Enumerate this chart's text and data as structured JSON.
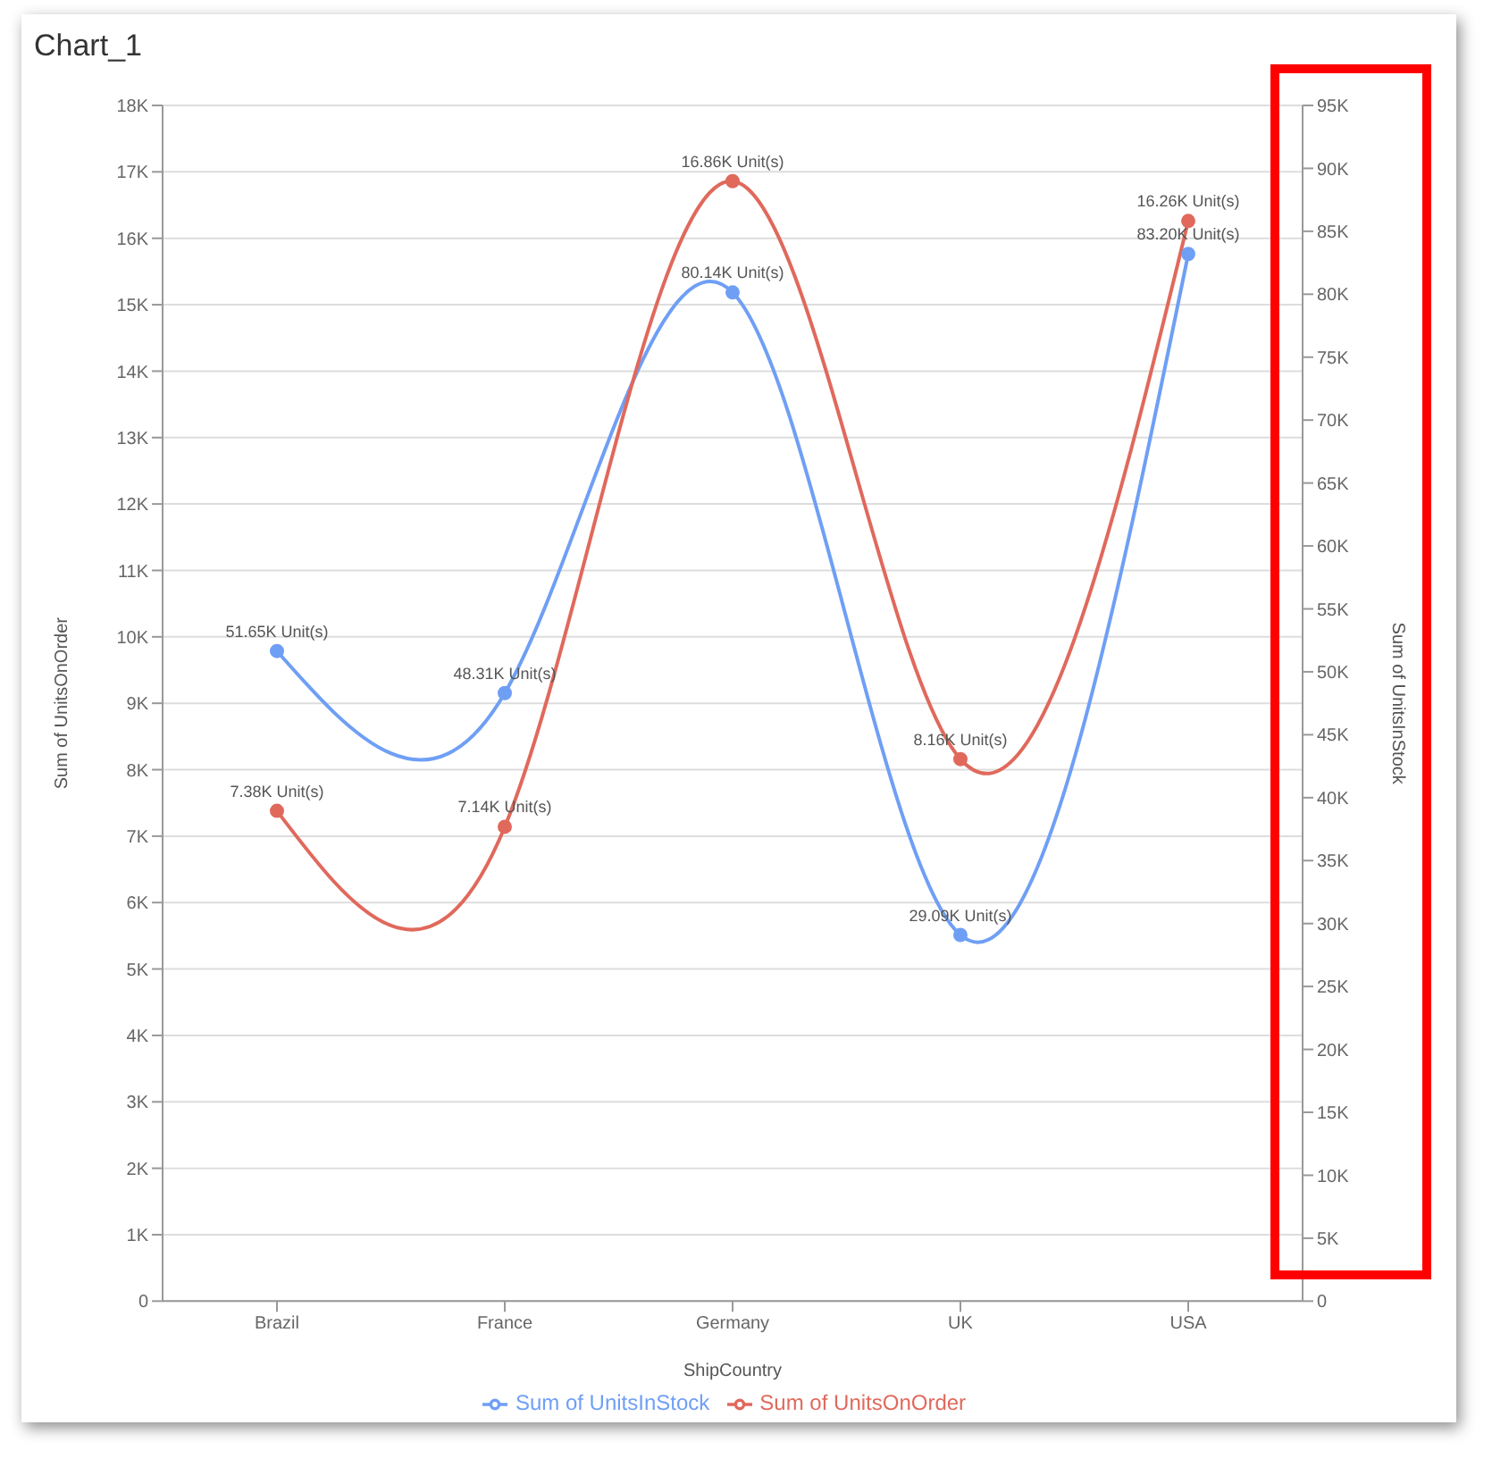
{
  "chart_data": {
    "type": "line",
    "title": "Chart_1",
    "xlabel": "ShipCountry",
    "ylabel": "Sum of UnitsOnOrder",
    "y2label": "Sum of UnitsInStock",
    "categories": [
      "Brazil",
      "France",
      "Germany",
      "UK",
      "USA"
    ],
    "series": [
      {
        "name": "Sum of UnitsInStock",
        "color": "#6f9ff5",
        "axis": "y2",
        "values": [
          51650,
          48310,
          80140,
          29090,
          83200
        ],
        "value_labels": [
          "51.65K Unit(s)",
          "48.31K Unit(s)",
          "80.14K Unit(s)",
          "29.09K Unit(s)",
          "83.20K Unit(s)"
        ]
      },
      {
        "name": "Sum of UnitsOnOrder",
        "color": "#e0695c",
        "values": [
          7380,
          7140,
          16860,
          8160,
          16260
        ],
        "value_labels": [
          "7.38K Unit(s)",
          "7.14K Unit(s)",
          "16.86K Unit(s)",
          "8.16K Unit(s)",
          "16.26K Unit(s)"
        ]
      }
    ],
    "ylim": [
      0,
      18000
    ],
    "yticks": [
      0,
      {
        "value": 1000,
        "label": "1K"
      },
      {
        "value": 2000,
        "label": "2K"
      },
      {
        "value": 3000,
        "label": "3K"
      },
      {
        "value": 4000,
        "label": "4K"
      },
      {
        "value": 5000,
        "label": "5K"
      },
      {
        "value": 6000,
        "label": "6K"
      },
      {
        "value": 7000,
        "label": "7K"
      },
      {
        "value": 8000,
        "label": "8K"
      },
      {
        "value": 9000,
        "label": "9K"
      },
      {
        "value": 10000,
        "label": "10K"
      },
      {
        "value": 11000,
        "label": "11K"
      },
      {
        "value": 12000,
        "label": "12K"
      },
      {
        "value": 13000,
        "label": "13K"
      },
      {
        "value": 14000,
        "label": "14K"
      },
      {
        "value": 15000,
        "label": "15K"
      },
      {
        "value": 16000,
        "label": "16K"
      },
      {
        "value": 17000,
        "label": "17K"
      },
      {
        "value": 18000,
        "label": "18K"
      }
    ],
    "y2lim": [
      0,
      95000
    ],
    "y2ticks": [
      0,
      {
        "value": 5000,
        "label": "5K"
      },
      {
        "value": 10000,
        "label": "10K"
      },
      {
        "value": 15000,
        "label": "15K"
      },
      {
        "value": 20000,
        "label": "20K"
      },
      {
        "value": 25000,
        "label": "25K"
      },
      {
        "value": 30000,
        "label": "30K"
      },
      {
        "value": 35000,
        "label": "35K"
      },
      {
        "value": 40000,
        "label": "40K"
      },
      {
        "value": 45000,
        "label": "45K"
      },
      {
        "value": 50000,
        "label": "50K"
      },
      {
        "value": 55000,
        "label": "55K"
      },
      {
        "value": 60000,
        "label": "60K"
      },
      {
        "value": 65000,
        "label": "65K"
      },
      {
        "value": 70000,
        "label": "70K"
      },
      {
        "value": 75000,
        "label": "75K"
      },
      {
        "value": 80000,
        "label": "80K"
      },
      {
        "value": 85000,
        "label": "85K"
      },
      {
        "value": 90000,
        "label": "90K"
      },
      {
        "value": 95000,
        "label": "95K"
      }
    ],
    "grid": "y",
    "legend": "bottom",
    "marker": "circle",
    "line_style": "solid"
  }
}
